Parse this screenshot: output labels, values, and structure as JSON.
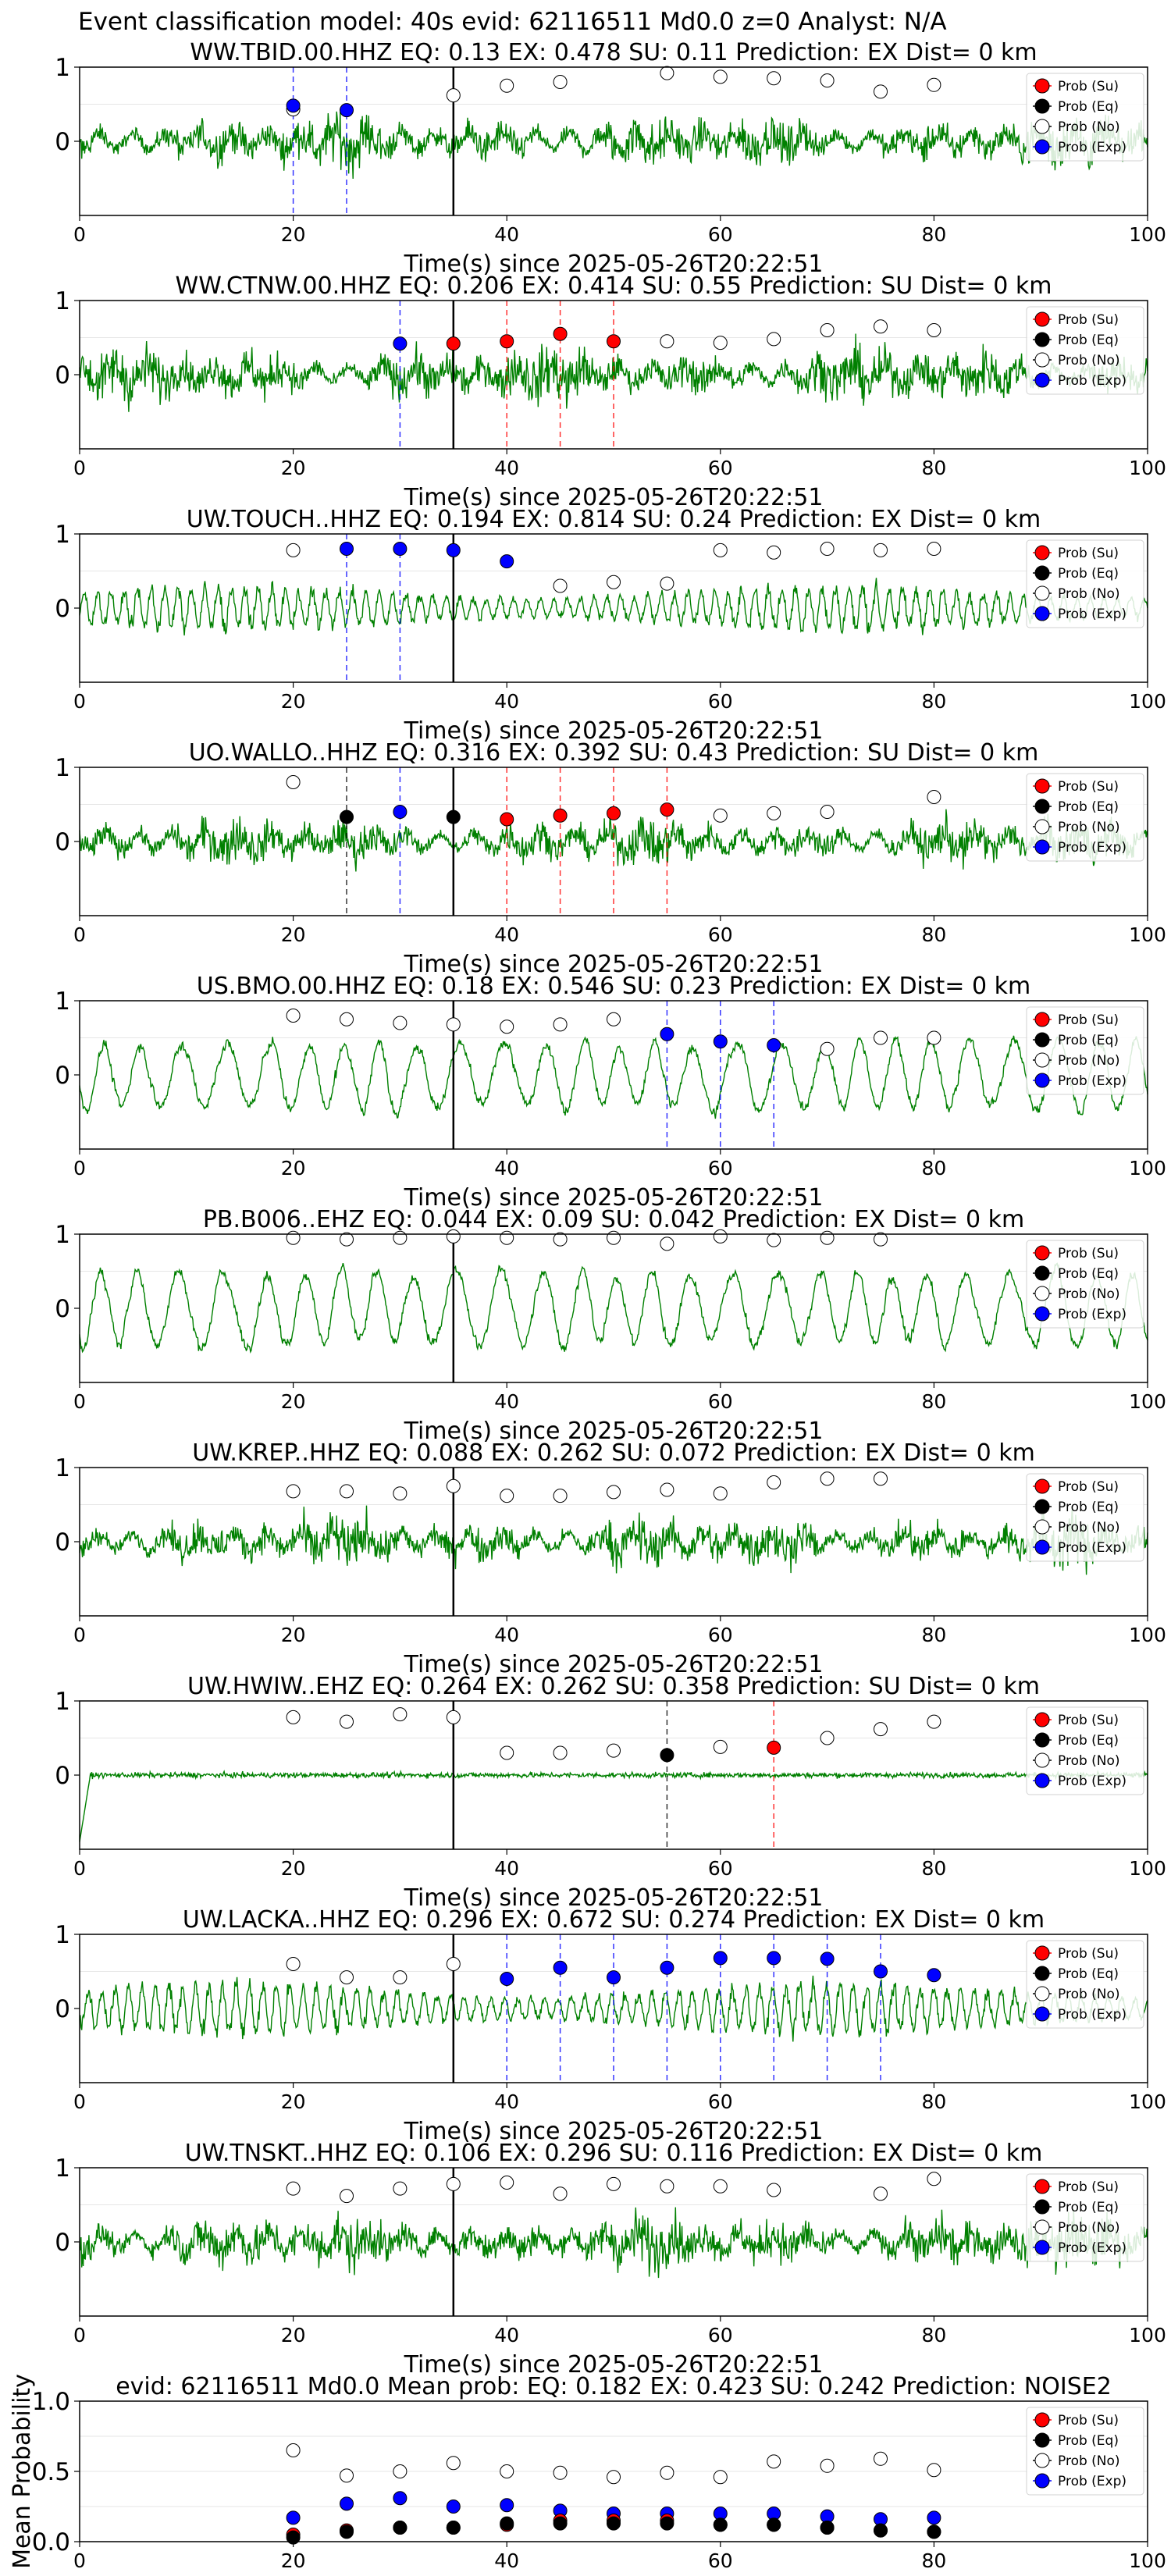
{
  "suptitle": "Event classification model: 40s evid: 62116511 Md0.0 z=0 Analyst: N/A",
  "colors": {
    "waveform": "#008000",
    "su": "#ff0000",
    "eq": "#000000",
    "no": "#ffffff",
    "exp": "#0000ff",
    "pick_line": "#000000"
  },
  "legend": [
    "Prob (Su)",
    "Prob (Eq)",
    "Prob (No)",
    "Prob (Exp)"
  ],
  "window_times": [
    20,
    25,
    30,
    35,
    40,
    45,
    50,
    55,
    60,
    65,
    70,
    75,
    80
  ],
  "chart_data": [
    {
      "type": "line",
      "title": "WW.TBID.00.HHZ   EQ: 0.13  EX: 0.478  SU: 0.11   Prediction: EX    Dist= 0 km",
      "xlabel": "Time(s) since 2025-05-26T20:22:51",
      "xlim": [
        0,
        100
      ],
      "ylim": [
        -1,
        1
      ],
      "xticks": [
        "0",
        "20",
        "40",
        "60",
        "80",
        "100"
      ],
      "yticks": [
        "0",
        "1"
      ],
      "pick_time": 35,
      "waveform": {
        "style": "broadband",
        "amplitude": 0.45
      },
      "prob_no": [
        0.43,
        null,
        null,
        0.62,
        0.75,
        0.8,
        null,
        0.92,
        0.87,
        0.85,
        0.82,
        0.67,
        0.76
      ],
      "markers": [
        {
          "t": 20,
          "cls": "exp",
          "p": 0.48
        },
        {
          "t": 25,
          "cls": "exp",
          "p": 0.42
        }
      ],
      "windows": [
        {
          "t": 20,
          "cls": "exp"
        },
        {
          "t": 25,
          "cls": "exp"
        }
      ]
    },
    {
      "type": "line",
      "title": "WW.CTNW.00.HHZ   EQ: 0.206  EX: 0.414  SU: 0.55   Prediction: SU    Dist= 0 km",
      "xlabel": "Time(s) since 2025-05-26T20:22:51",
      "xlim": [
        0,
        100
      ],
      "ylim": [
        -1,
        1
      ],
      "xticks": [
        "0",
        "20",
        "40",
        "60",
        "80",
        "100"
      ],
      "yticks": [
        "0",
        "1"
      ],
      "pick_time": 35,
      "waveform": {
        "style": "broadband",
        "amplitude": 0.5
      },
      "prob_no": [
        null,
        null,
        null,
        null,
        null,
        null,
        null,
        0.45,
        0.43,
        0.48,
        0.6,
        0.65,
        0.6
      ],
      "markers": [
        {
          "t": 30,
          "cls": "exp",
          "p": 0.42
        },
        {
          "t": 35,
          "cls": "su",
          "p": 0.42
        },
        {
          "t": 40,
          "cls": "su",
          "p": 0.45
        },
        {
          "t": 45,
          "cls": "su",
          "p": 0.55
        },
        {
          "t": 50,
          "cls": "su",
          "p": 0.45
        }
      ],
      "windows": [
        {
          "t": 30,
          "cls": "exp"
        },
        {
          "t": 40,
          "cls": "su"
        },
        {
          "t": 45,
          "cls": "su"
        },
        {
          "t": 50,
          "cls": "su"
        }
      ]
    },
    {
      "type": "line",
      "title": "UW.TOUCH..HHZ   EQ: 0.194  EX: 0.814  SU: 0.24   Prediction: EX    Dist= 0 km",
      "xlabel": "Time(s) since 2025-05-26T20:22:51",
      "xlim": [
        0,
        100
      ],
      "ylim": [
        -1,
        1
      ],
      "xticks": [
        "0",
        "20",
        "40",
        "60",
        "80",
        "100"
      ],
      "yticks": [
        "0",
        "1"
      ],
      "pick_time": 35,
      "waveform": {
        "style": "oscillating",
        "amplitude": 0.35
      },
      "prob_no": [
        0.78,
        null,
        null,
        null,
        null,
        0.3,
        0.35,
        0.33,
        0.78,
        0.75,
        0.8,
        0.78,
        0.8
      ],
      "markers": [
        {
          "t": 25,
          "cls": "exp",
          "p": 0.8
        },
        {
          "t": 30,
          "cls": "exp",
          "p": 0.8
        },
        {
          "t": 35,
          "cls": "exp",
          "p": 0.78
        },
        {
          "t": 40,
          "cls": "exp",
          "p": 0.63
        }
      ],
      "windows": [
        {
          "t": 25,
          "cls": "exp"
        },
        {
          "t": 30,
          "cls": "exp"
        }
      ]
    },
    {
      "type": "line",
      "title": "UO.WALLO..HHZ   EQ: 0.316  EX: 0.392  SU: 0.43   Prediction: SU    Dist= 0 km",
      "xlabel": "Time(s) since 2025-05-26T20:22:51",
      "xlim": [
        0,
        100
      ],
      "ylim": [
        -1,
        1
      ],
      "xticks": [
        "0",
        "20",
        "40",
        "60",
        "80",
        "100"
      ],
      "yticks": [
        "0",
        "1"
      ],
      "pick_time": 35,
      "waveform": {
        "style": "broadband",
        "amplitude": 0.4
      },
      "prob_no": [
        0.8,
        null,
        null,
        null,
        null,
        null,
        null,
        null,
        0.35,
        0.38,
        0.4,
        null,
        0.6
      ],
      "markers": [
        {
          "t": 25,
          "cls": "eq",
          "p": 0.33
        },
        {
          "t": 30,
          "cls": "exp",
          "p": 0.4
        },
        {
          "t": 35,
          "cls": "eq",
          "p": 0.33
        },
        {
          "t": 40,
          "cls": "su",
          "p": 0.3
        },
        {
          "t": 45,
          "cls": "su",
          "p": 0.35
        },
        {
          "t": 50,
          "cls": "su",
          "p": 0.38
        },
        {
          "t": 55,
          "cls": "su",
          "p": 0.43
        }
      ],
      "windows": [
        {
          "t": 25,
          "cls": "eq"
        },
        {
          "t": 30,
          "cls": "exp"
        },
        {
          "t": 40,
          "cls": "su"
        },
        {
          "t": 45,
          "cls": "su"
        },
        {
          "t": 50,
          "cls": "su"
        },
        {
          "t": 55,
          "cls": "su"
        }
      ]
    },
    {
      "type": "line",
      "title": "US.BMO.00.HHZ   EQ: 0.18  EX: 0.546  SU: 0.23    Prediction: EX    Dist= 0 km",
      "xlabel": "Time(s) since 2025-05-26T20:22:51",
      "xlim": [
        0,
        100
      ],
      "ylim": [
        -1,
        1
      ],
      "xticks": [
        "0",
        "20",
        "40",
        "60",
        "80",
        "100"
      ],
      "yticks": [
        "0",
        "1"
      ],
      "pick_time": 35,
      "waveform": {
        "style": "lowfreq",
        "amplitude": 0.55
      },
      "prob_no": [
        0.8,
        0.75,
        0.7,
        0.68,
        0.65,
        0.68,
        0.75,
        null,
        null,
        null,
        0.35,
        0.5,
        0.5
      ],
      "markers": [
        {
          "t": 55,
          "cls": "exp",
          "p": 0.55
        },
        {
          "t": 60,
          "cls": "exp",
          "p": 0.45
        },
        {
          "t": 65,
          "cls": "exp",
          "p": 0.4
        }
      ],
      "windows": [
        {
          "t": 55,
          "cls": "exp"
        },
        {
          "t": 60,
          "cls": "exp"
        },
        {
          "t": 65,
          "cls": "exp"
        }
      ]
    },
    {
      "type": "line",
      "title": "PB.B006..EHZ   EQ: 0.044  EX: 0.09  SU: 0.042   Prediction: EX    Dist= 0 km",
      "xlabel": "Time(s) since 2025-05-26T20:22:51",
      "xlim": [
        0,
        100
      ],
      "ylim": [
        -1,
        1
      ],
      "xticks": [
        "0",
        "20",
        "40",
        "60",
        "80",
        "100"
      ],
      "yticks": [
        "0",
        "1"
      ],
      "pick_time": 35,
      "waveform": {
        "style": "lowfreq",
        "amplitude": 0.6
      },
      "prob_no": [
        0.95,
        0.93,
        0.95,
        0.97,
        0.95,
        0.93,
        0.95,
        0.87,
        0.97,
        0.92,
        0.95,
        0.93,
        null
      ],
      "markers": [],
      "windows": []
    },
    {
      "type": "line",
      "title": "UW.KREP..HHZ   EQ: 0.088  EX: 0.262  SU: 0.072    Prediction: EX    Dist= 0 km",
      "xlabel": "Time(s) since 2025-05-26T20:22:51",
      "xlim": [
        0,
        100
      ],
      "ylim": [
        -1,
        1
      ],
      "xticks": [
        "0",
        "20",
        "40",
        "60",
        "80",
        "100"
      ],
      "yticks": [
        "0",
        "1"
      ],
      "pick_time": 35,
      "waveform": {
        "style": "broadband",
        "amplitude": 0.45
      },
      "prob_no": [
        0.68,
        0.68,
        0.65,
        0.75,
        0.62,
        0.62,
        0.67,
        0.7,
        0.65,
        0.8,
        0.85,
        0.85,
        null
      ],
      "markers": [],
      "windows": []
    },
    {
      "type": "line",
      "title": "UW.HWIW..EHZ   EQ: 0.264  EX: 0.262  SU: 0.358    Prediction: SU    Dist= 0 km",
      "xlabel": "Time(s) since 2025-05-26T20:22:51",
      "xlim": [
        0,
        100
      ],
      "ylim": [
        -1,
        1
      ],
      "xticks": [
        "0",
        "20",
        "40",
        "60",
        "80",
        "100"
      ],
      "yticks": [
        "0",
        "1"
      ],
      "pick_time": 35,
      "waveform": {
        "style": "flat",
        "amplitude": 0.12
      },
      "prob_no": [
        0.78,
        0.72,
        0.82,
        0.78,
        0.3,
        0.3,
        0.33,
        null,
        0.38,
        null,
        0.5,
        0.62,
        0.72
      ],
      "markers": [
        {
          "t": 55,
          "cls": "eq",
          "p": 0.27
        },
        {
          "t": 65,
          "cls": "su",
          "p": 0.37
        }
      ],
      "windows": [
        {
          "t": 55,
          "cls": "eq"
        },
        {
          "t": 65,
          "cls": "su"
        }
      ]
    },
    {
      "type": "line",
      "title": "UW.LACKA..HHZ   EQ: 0.296  EX: 0.672  SU: 0.274    Prediction: EX    Dist= 0 km",
      "xlabel": "Time(s) since 2025-05-26T20:22:51",
      "xlim": [
        0,
        100
      ],
      "ylim": [
        -1,
        1
      ],
      "xticks": [
        "0",
        "20",
        "40",
        "60",
        "80",
        "100"
      ],
      "yticks": [
        "0",
        "1"
      ],
      "pick_time": 35,
      "waveform": {
        "style": "oscillating",
        "amplitude": 0.4
      },
      "prob_no": [
        0.6,
        0.42,
        0.42,
        0.6,
        null,
        null,
        null,
        null,
        null,
        null,
        null,
        null,
        null
      ],
      "markers": [
        {
          "t": 40,
          "cls": "exp",
          "p": 0.4
        },
        {
          "t": 45,
          "cls": "exp",
          "p": 0.55
        },
        {
          "t": 50,
          "cls": "exp",
          "p": 0.42
        },
        {
          "t": 55,
          "cls": "exp",
          "p": 0.55
        },
        {
          "t": 60,
          "cls": "exp",
          "p": 0.68
        },
        {
          "t": 65,
          "cls": "exp",
          "p": 0.68
        },
        {
          "t": 70,
          "cls": "exp",
          "p": 0.67
        },
        {
          "t": 75,
          "cls": "exp",
          "p": 0.5
        },
        {
          "t": 80,
          "cls": "exp",
          "p": 0.45
        }
      ],
      "windows": [
        {
          "t": 40,
          "cls": "exp"
        },
        {
          "t": 45,
          "cls": "exp"
        },
        {
          "t": 50,
          "cls": "exp"
        },
        {
          "t": 55,
          "cls": "exp"
        },
        {
          "t": 60,
          "cls": "exp"
        },
        {
          "t": 65,
          "cls": "exp"
        },
        {
          "t": 70,
          "cls": "exp"
        },
        {
          "t": 75,
          "cls": "exp"
        }
      ]
    },
    {
      "type": "line",
      "title": "UW.TNSKT..HHZ   EQ: 0.106  EX: 0.296  SU: 0.116    Prediction: EX    Dist= 0 km",
      "xlabel": "Time(s) since 2025-05-26T20:22:51",
      "xlim": [
        0,
        100
      ],
      "ylim": [
        -1,
        1
      ],
      "xticks": [
        "0",
        "20",
        "40",
        "60",
        "80",
        "100"
      ],
      "yticks": [
        "0",
        "1"
      ],
      "pick_time": 35,
      "waveform": {
        "style": "broadband",
        "amplitude": 0.5
      },
      "prob_no": [
        0.72,
        0.62,
        0.72,
        0.78,
        0.8,
        0.65,
        0.78,
        0.75,
        0.75,
        0.7,
        null,
        0.65,
        0.85
      ],
      "markers": [],
      "windows": []
    },
    {
      "type": "scatter",
      "title": "evid: 62116511  Md0.0   Mean prob:   EQ: 0.182  EX: 0.423  SU: 0.242   Prediction: NOISE2",
      "ylabel": "Mean Probability",
      "xlim": [
        0,
        100
      ],
      "ylim": [
        0,
        1
      ],
      "xticks": [
        "0",
        "20",
        "40",
        "60",
        "80",
        "100"
      ],
      "yticks": [
        "0.0",
        "0.5",
        "1.0"
      ],
      "x": [
        20,
        25,
        30,
        35,
        40,
        45,
        50,
        55,
        60,
        65,
        70,
        75,
        80
      ],
      "series": [
        {
          "name": "Prob (Su)",
          "cls": "su",
          "values": [
            0.05,
            0.08,
            0.1,
            0.1,
            0.12,
            0.15,
            0.15,
            0.15,
            0.12,
            0.12,
            0.1,
            0.08,
            0.07
          ]
        },
        {
          "name": "Prob (Eq)",
          "cls": "eq",
          "values": [
            0.03,
            0.07,
            0.1,
            0.1,
            0.13,
            0.13,
            0.13,
            0.13,
            0.12,
            0.12,
            0.1,
            0.08,
            0.07
          ]
        },
        {
          "name": "Prob (No)",
          "cls": "no",
          "values": [
            0.65,
            0.47,
            0.5,
            0.56,
            0.5,
            0.49,
            0.46,
            0.49,
            0.46,
            0.57,
            0.54,
            0.59,
            0.51
          ]
        },
        {
          "name": "Prob (Exp)",
          "cls": "exp",
          "values": [
            0.17,
            0.27,
            0.31,
            0.25,
            0.26,
            0.22,
            0.2,
            0.2,
            0.2,
            0.2,
            0.18,
            0.16,
            0.17
          ]
        }
      ]
    }
  ]
}
